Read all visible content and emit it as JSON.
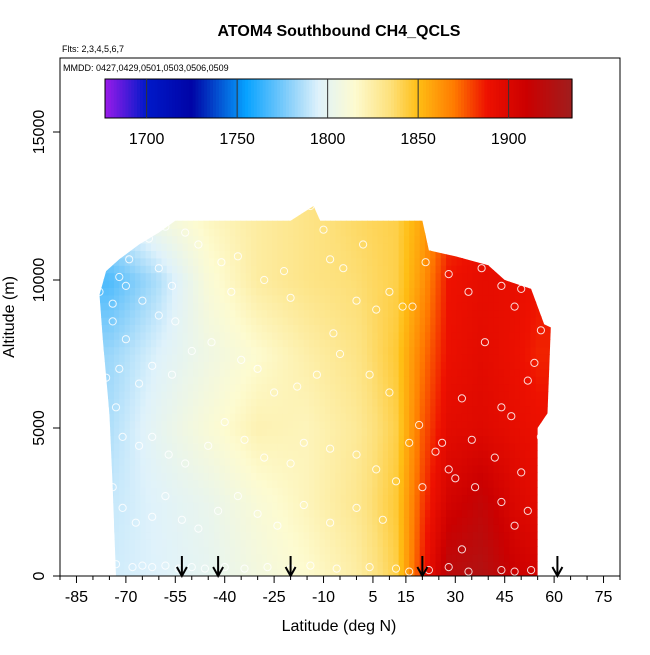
{
  "chart_data": {
    "type": "heatmap",
    "title": "ATOM4 Southbound CH4_QCLS",
    "subtitle_flights": "Flts: 2,3,4,5,6,7",
    "subtitle_dates": "MMDD: 0427,0429,0501,0503,0506,0509",
    "xlabel": "Latitude (deg N)",
    "ylabel": "Altitude (m)",
    "xlim": [
      -90,
      80
    ],
    "ylim": [
      0,
      17500
    ],
    "x_ticks": [
      -85,
      -70,
      -55,
      -40,
      -25,
      -10,
      5,
      15,
      30,
      45,
      60,
      75
    ],
    "y_ticks": [
      0,
      5000,
      10000,
      15000
    ],
    "colorbar": {
      "range": [
        1677,
        1935
      ],
      "ticks": [
        1700,
        1750,
        1800,
        1850,
        1900
      ],
      "position": "top-inside",
      "stops": [
        {
          "v": 1677,
          "c": "#9a1bea"
        },
        {
          "v": 1700,
          "c": "#0019c9"
        },
        {
          "v": 1725,
          "c": "#0004a6"
        },
        {
          "v": 1755,
          "c": "#07a2ff"
        },
        {
          "v": 1780,
          "c": "#8fd2fa"
        },
        {
          "v": 1795,
          "c": "#dff2fb"
        },
        {
          "v": 1815,
          "c": "#fdfbd0"
        },
        {
          "v": 1835,
          "c": "#fde07a"
        },
        {
          "v": 1850,
          "c": "#ffbe14"
        },
        {
          "v": 1870,
          "c": "#ff7a00"
        },
        {
          "v": 1888,
          "c": "#ee1100"
        },
        {
          "v": 1910,
          "c": "#cb0000"
        },
        {
          "v": 1935,
          "c": "#a01e1e"
        }
      ]
    },
    "field": {
      "lat": [
        -75,
        -60,
        -45,
        -30,
        -15,
        0,
        12,
        20,
        28,
        38,
        48,
        55
      ],
      "alt": [
        0,
        2500,
        5000,
        7500,
        10000,
        12000
      ],
      "values": [
        [
          1792,
          1795,
          1800,
          1808,
          1815,
          1825,
          1842,
          1885,
          1920,
          1925,
          1910,
          1905
        ],
        [
          1790,
          1796,
          1802,
          1812,
          1820,
          1830,
          1845,
          1880,
          1905,
          1915,
          1900,
          1895
        ],
        [
          1786,
          1800,
          1812,
          1822,
          1820,
          1828,
          1842,
          1875,
          1895,
          1898,
          1893,
          1890
        ],
        [
          1782,
          1795,
          1806,
          1815,
          1824,
          1832,
          1845,
          1870,
          1890,
          1895,
          1890,
          1885
        ],
        [
          1768,
          1786,
          1812,
          1826,
          1832,
          1836,
          1842,
          1862,
          1888,
          1893,
          1892,
          1888
        ],
        [
          1790,
          1806,
          1818,
          1826,
          1832,
          1838,
          1842,
          1858,
          1880,
          1888,
          1888,
          1885
        ]
      ]
    },
    "coverage_top": [
      {
        "lat": -78,
        "alt": 9500
      },
      {
        "lat": -76,
        "alt": 10300
      },
      {
        "lat": -72,
        "alt": 10700
      },
      {
        "lat": -66,
        "alt": 11200
      },
      {
        "lat": -60,
        "alt": 11600
      },
      {
        "lat": -55,
        "alt": 12000
      },
      {
        "lat": -45,
        "alt": 12000
      },
      {
        "lat": -20,
        "alt": 12000
      },
      {
        "lat": -13,
        "alt": 12500
      },
      {
        "lat": -11,
        "alt": 12000
      },
      {
        "lat": 20,
        "alt": 12000
      },
      {
        "lat": 22,
        "alt": 11000
      },
      {
        "lat": 30,
        "alt": 10800
      },
      {
        "lat": 40,
        "alt": 10500
      },
      {
        "lat": 45,
        "alt": 10000
      },
      {
        "lat": 53,
        "alt": 9700
      },
      {
        "lat": 57,
        "alt": 8500
      },
      {
        "lat": 59,
        "alt": 8400
      }
    ],
    "coverage_bottom_left": [
      {
        "lat": -78,
        "alt": 9500
      },
      {
        "lat": -77,
        "alt": 8000
      },
      {
        "lat": -75,
        "alt": 5500
      },
      {
        "lat": -74,
        "alt": 3000
      },
      {
        "lat": -73,
        "alt": 0
      }
    ],
    "coverage_bottom_right": [
      {
        "lat": 59,
        "alt": 8400
      },
      {
        "lat": 58,
        "alt": 5500
      },
      {
        "lat": 55,
        "alt": 5000
      },
      {
        "lat": 55,
        "alt": 0
      }
    ],
    "arrows_lat": [
      -53,
      -42,
      -20,
      20,
      61
    ],
    "observations": [
      {
        "lat": -78,
        "alt": 9600
      },
      {
        "lat": -74,
        "alt": 9200
      },
      {
        "lat": -72,
        "alt": 10100
      },
      {
        "lat": -70,
        "alt": 9800
      },
      {
        "lat": -69,
        "alt": 10700
      },
      {
        "lat": -63,
        "alt": 11400
      },
      {
        "lat": -58,
        "alt": 11800
      },
      {
        "lat": -52,
        "alt": 11600
      },
      {
        "lat": -48,
        "alt": 11200
      },
      {
        "lat": -60,
        "alt": 10400
      },
      {
        "lat": -56,
        "alt": 9800
      },
      {
        "lat": -65,
        "alt": 9300
      },
      {
        "lat": -60,
        "alt": 8800
      },
      {
        "lat": -55,
        "alt": 8600
      },
      {
        "lat": -41,
        "alt": 10600
      },
      {
        "lat": -36,
        "alt": 10800
      },
      {
        "lat": -38,
        "alt": 9600
      },
      {
        "lat": -28,
        "alt": 10000
      },
      {
        "lat": -22,
        "alt": 10300
      },
      {
        "lat": -20,
        "alt": 9400
      },
      {
        "lat": -14,
        "alt": 12500
      },
      {
        "lat": -10,
        "alt": 11700
      },
      {
        "lat": -8,
        "alt": 10700
      },
      {
        "lat": 2,
        "alt": 11200
      },
      {
        "lat": -4,
        "alt": 10400
      },
      {
        "lat": 0,
        "alt": 9300
      },
      {
        "lat": -7,
        "alt": 8200
      },
      {
        "lat": 6,
        "alt": 9000
      },
      {
        "lat": 10,
        "alt": 9600
      },
      {
        "lat": 14,
        "alt": 9100
      },
      {
        "lat": 17,
        "alt": 9100
      },
      {
        "lat": 21,
        "alt": 10600
      },
      {
        "lat": 28,
        "alt": 10200
      },
      {
        "lat": 30,
        "alt": 11000
      },
      {
        "lat": 34,
        "alt": 9600
      },
      {
        "lat": 38,
        "alt": 10400
      },
      {
        "lat": 44,
        "alt": 9800
      },
      {
        "lat": 50,
        "alt": 9700
      },
      {
        "lat": 48,
        "alt": 9100
      },
      {
        "lat": 58,
        "alt": 8700
      },
      {
        "lat": 56,
        "alt": 8300
      },
      {
        "lat": 39,
        "alt": 7900
      },
      {
        "lat": 54,
        "alt": 7200
      },
      {
        "lat": 52,
        "alt": 6600
      },
      {
        "lat": 32,
        "alt": 6000
      },
      {
        "lat": 44,
        "alt": 5700
      },
      {
        "lat": 47,
        "alt": 5400
      },
      {
        "lat": 56,
        "alt": 4700
      },
      {
        "lat": 19,
        "alt": 5100
      },
      {
        "lat": 26,
        "alt": 4500
      },
      {
        "lat": 35,
        "alt": 4600
      },
      {
        "lat": 42,
        "alt": 4000
      },
      {
        "lat": 50,
        "alt": 3500
      },
      {
        "lat": 44,
        "alt": 2500
      },
      {
        "lat": 52,
        "alt": 2200
      },
      {
        "lat": 30,
        "alt": 3300
      },
      {
        "lat": 36,
        "alt": 3000
      },
      {
        "lat": 48,
        "alt": 1700
      },
      {
        "lat": 20,
        "alt": 3000
      },
      {
        "lat": 12,
        "alt": 3200
      },
      {
        "lat": -74,
        "alt": 8600
      },
      {
        "lat": -70,
        "alt": 8000
      },
      {
        "lat": -72,
        "alt": 7000
      },
      {
        "lat": -76,
        "alt": 6700
      },
      {
        "lat": -73,
        "alt": 5700
      },
      {
        "lat": -66,
        "alt": 6500
      },
      {
        "lat": -62,
        "alt": 7100
      },
      {
        "lat": -56,
        "alt": 6800
      },
      {
        "lat": -50,
        "alt": 7600
      },
      {
        "lat": -44,
        "alt": 7900
      },
      {
        "lat": -35,
        "alt": 7300
      },
      {
        "lat": -30,
        "alt": 7000
      },
      {
        "lat": -25,
        "alt": 6200
      },
      {
        "lat": -18,
        "alt": 6400
      },
      {
        "lat": -12,
        "alt": 6800
      },
      {
        "lat": -5,
        "alt": 7500
      },
      {
        "lat": 4,
        "alt": 6800
      },
      {
        "lat": 10,
        "alt": 6200
      },
      {
        "lat": -76,
        "alt": 5000
      },
      {
        "lat": -71,
        "alt": 4700
      },
      {
        "lat": -66,
        "alt": 4400
      },
      {
        "lat": -62,
        "alt": 4700
      },
      {
        "lat": -57,
        "alt": 4100
      },
      {
        "lat": -52,
        "alt": 3800
      },
      {
        "lat": -45,
        "alt": 4400
      },
      {
        "lat": -40,
        "alt": 5200
      },
      {
        "lat": -34,
        "alt": 4600
      },
      {
        "lat": -28,
        "alt": 4000
      },
      {
        "lat": -20,
        "alt": 3800
      },
      {
        "lat": -16,
        "alt": 4500
      },
      {
        "lat": -8,
        "alt": 4300
      },
      {
        "lat": 0,
        "alt": 4100
      },
      {
        "lat": 6,
        "alt": 3600
      },
      {
        "lat": -74,
        "alt": 3000
      },
      {
        "lat": -71,
        "alt": 2300
      },
      {
        "lat": -67,
        "alt": 1800
      },
      {
        "lat": -62,
        "alt": 2000
      },
      {
        "lat": -58,
        "alt": 2700
      },
      {
        "lat": -53,
        "alt": 1900
      },
      {
        "lat": -48,
        "alt": 1600
      },
      {
        "lat": -42,
        "alt": 2200
      },
      {
        "lat": -36,
        "alt": 2700
      },
      {
        "lat": -30,
        "alt": 2100
      },
      {
        "lat": -24,
        "alt": 1700
      },
      {
        "lat": -16,
        "alt": 2400
      },
      {
        "lat": -8,
        "alt": 1800
      },
      {
        "lat": 0,
        "alt": 2300
      },
      {
        "lat": 8,
        "alt": 1900
      },
      {
        "lat": -73,
        "alt": 400
      },
      {
        "lat": -68,
        "alt": 300
      },
      {
        "lat": -65,
        "alt": 350
      },
      {
        "lat": -62,
        "alt": 300
      },
      {
        "lat": -58,
        "alt": 350
      },
      {
        "lat": -54,
        "alt": 250
      },
      {
        "lat": -50,
        "alt": 300
      },
      {
        "lat": -46,
        "alt": 250
      },
      {
        "lat": -40,
        "alt": 300
      },
      {
        "lat": -34,
        "alt": 250
      },
      {
        "lat": -27,
        "alt": 300
      },
      {
        "lat": -20,
        "alt": 250
      },
      {
        "lat": -14,
        "alt": 350
      },
      {
        "lat": -6,
        "alt": 250
      },
      {
        "lat": 4,
        "alt": 300
      },
      {
        "lat": 12,
        "alt": 250
      },
      {
        "lat": 16,
        "alt": 150
      },
      {
        "lat": 22,
        "alt": 200
      },
      {
        "lat": 28,
        "alt": 300
      },
      {
        "lat": 34,
        "alt": 150
      },
      {
        "lat": 44,
        "alt": 200
      },
      {
        "lat": 48,
        "alt": 150
      },
      {
        "lat": 53,
        "alt": 200
      },
      {
        "lat": 32,
        "alt": 900
      },
      {
        "lat": 28,
        "alt": 3600
      },
      {
        "lat": 24,
        "alt": 4200
      },
      {
        "lat": 16,
        "alt": 4500
      }
    ]
  }
}
